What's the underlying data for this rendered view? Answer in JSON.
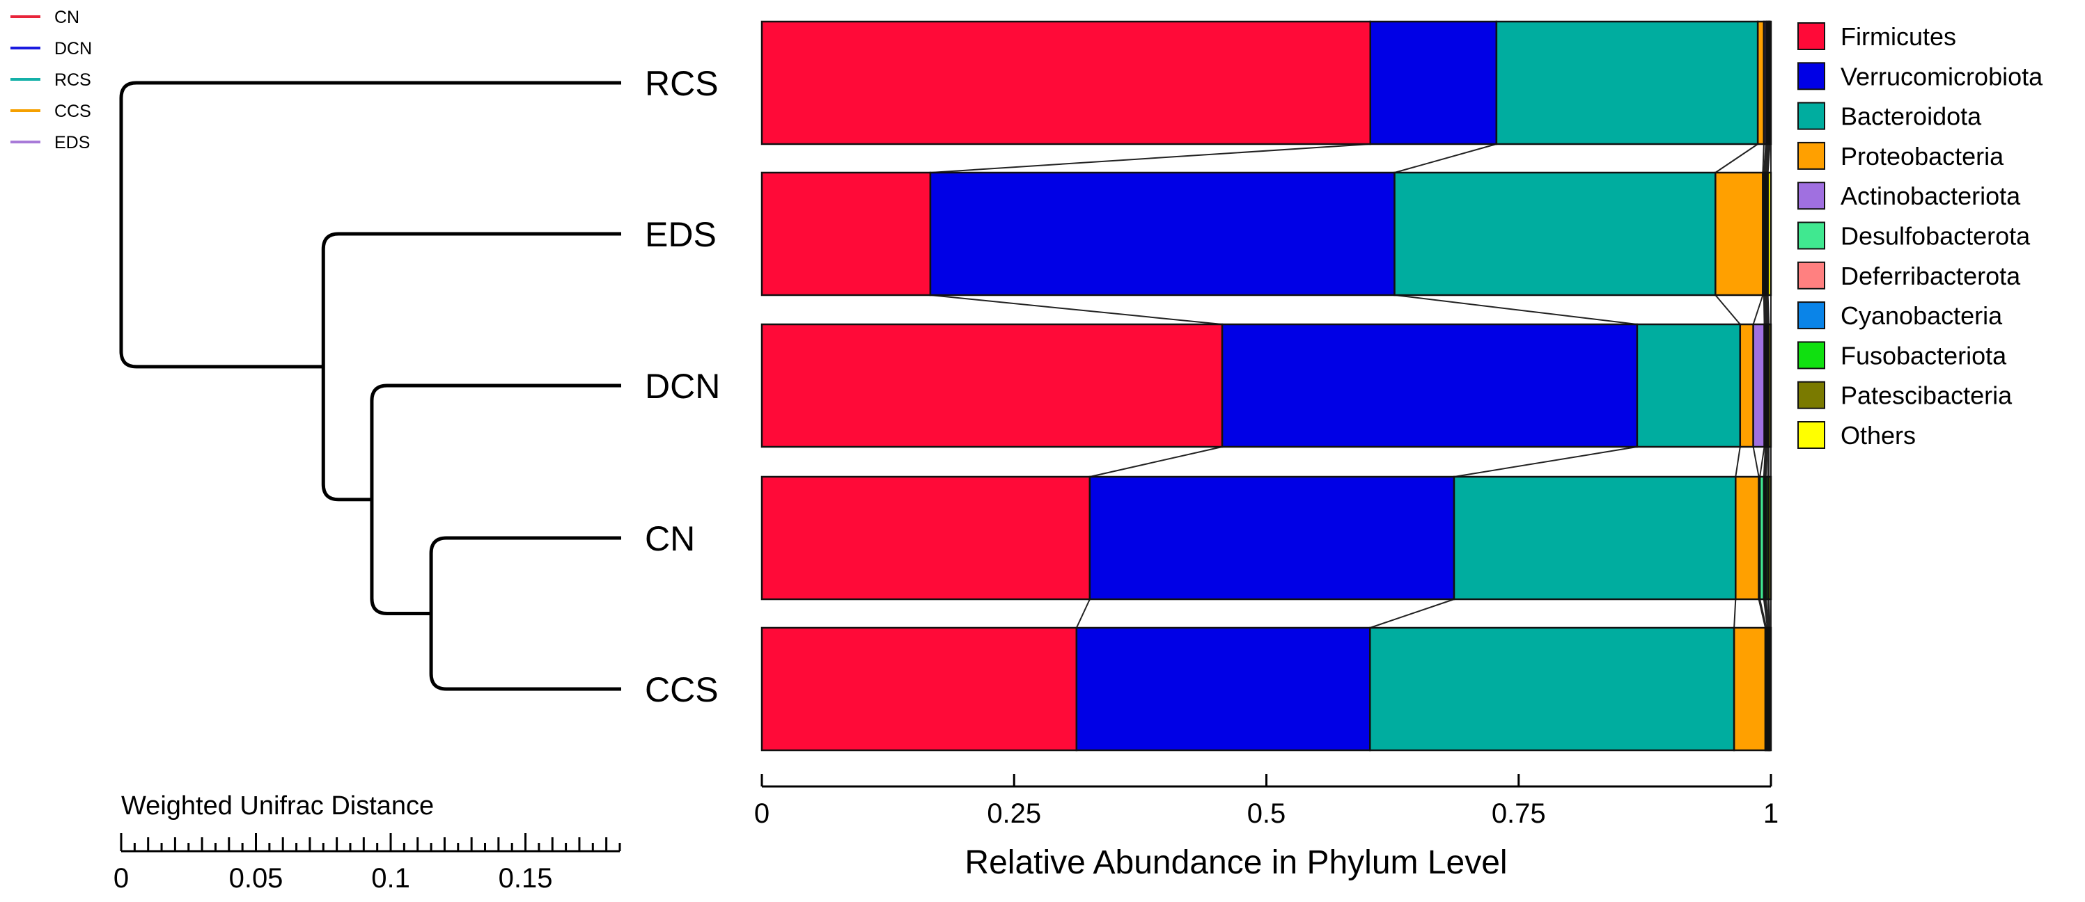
{
  "chart_data": [
    {
      "type": "dendrogram",
      "title": "",
      "leaves": [
        "RCS",
        "EDS",
        "DCN",
        "CN",
        "CCS"
      ],
      "merges": [
        {
          "left": "CN",
          "right": "CCS",
          "height": 0.115
        },
        {
          "left": "DCN",
          "right": "CN+CCS",
          "height": 0.093
        },
        {
          "left": "EDS",
          "right": "DCN+CN+CCS",
          "height": 0.075
        },
        {
          "left": "RCS",
          "right": "EDS+DCN+CN+CCS",
          "height": 0.0
        }
      ],
      "legend": [
        {
          "label": "CN",
          "color": "#e8243a"
        },
        {
          "label": "DCN",
          "color": "#1a1ae0"
        },
        {
          "label": "RCS",
          "color": "#14b0a8"
        },
        {
          "label": "CCS",
          "color": "#f5a000"
        },
        {
          "label": "EDS",
          "color": "#a87ad8"
        }
      ],
      "xlabel": "Weighted Unifrac Distance",
      "xlim": [
        0,
        0.185
      ],
      "tick_labels": [
        "0",
        "0.05",
        "0.1",
        "0.15"
      ],
      "tick_values": [
        0,
        0.05,
        0.1,
        0.15
      ],
      "minor_tick_step": 0.01
    },
    {
      "type": "bar",
      "orientation": "horizontal",
      "stacked": true,
      "categories": [
        "RCS",
        "EDS",
        "DCN",
        "CN",
        "CCS"
      ],
      "xlabel": "Relative Abundance in Phylum Level",
      "xlim": [
        0,
        1
      ],
      "tick_labels": [
        "0",
        "0.25",
        "0.5",
        "0.75",
        "1"
      ],
      "tick_values": [
        0,
        0.25,
        0.5,
        0.75,
        1
      ],
      "legend_position": "right",
      "series": [
        {
          "name": "Firmicutes",
          "color": "#ff0a38",
          "values": [
            0.603,
            0.167,
            0.456,
            0.325,
            0.312
          ]
        },
        {
          "name": "Verrucomicrobiota",
          "color": "#0000e6",
          "values": [
            0.125,
            0.46,
            0.411,
            0.361,
            0.291
          ]
        },
        {
          "name": "Bacteroidota",
          "color": "#00ad9f",
          "values": [
            0.259,
            0.318,
            0.102,
            0.279,
            0.361
          ]
        },
        {
          "name": "Proteobacteria",
          "color": "#ffa000",
          "values": [
            0.006,
            0.047,
            0.013,
            0.023,
            0.031
          ]
        },
        {
          "name": "Actinobacteriota",
          "color": "#a070e0",
          "values": [
            0.002,
            0.001,
            0.011,
            0.001,
            0.001
          ]
        },
        {
          "name": "Desulfobacterota",
          "color": "#40e890",
          "values": [
            0.001,
            0.001,
            0.001,
            0.004,
            0.001
          ]
        },
        {
          "name": "Deferribacterota",
          "color": "#ff8080",
          "values": [
            0.001,
            0.001,
            0.001,
            0.001,
            0.001
          ]
        },
        {
          "name": "Cyanobacteria",
          "color": "#0a84e8",
          "values": [
            0.001,
            0.001,
            0.001,
            0.001,
            0.0005
          ]
        },
        {
          "name": "Fusobacteriota",
          "color": "#10e010",
          "values": [
            0.0005,
            0.0005,
            0.001,
            0.002,
            0.0005
          ]
        },
        {
          "name": "Patescibacteria",
          "color": "#7a7a00",
          "values": [
            0.0005,
            0.0005,
            0.0005,
            0.001,
            0.0005
          ]
        },
        {
          "name": "Others",
          "color": "#ffff00",
          "values": [
            0.001,
            0.003,
            0.002,
            0.002,
            0.001
          ]
        }
      ]
    }
  ]
}
